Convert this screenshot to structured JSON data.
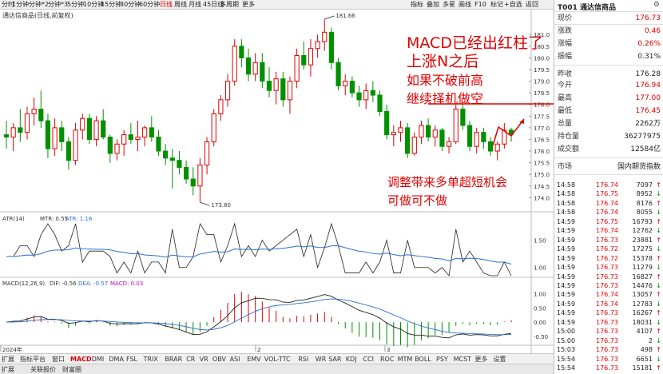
{
  "toolbar": {
    "timeframes": [
      "分时",
      "1分钟",
      "分钟*2",
      "分钟*3",
      "5分钟",
      "10分钟",
      "15分钟",
      "30分钟",
      "60分钟",
      "日线",
      "周线",
      "月线",
      "45日线",
      "多周期",
      "更多"
    ],
    "active_index": 9,
    "right_buttons": [
      "指标",
      "叠加",
      "多星",
      "画线",
      "F10",
      "标记",
      "+自选",
      "返回"
    ]
  },
  "chart": {
    "title": "通达信商品(日线,前复权)",
    "price_axis": [
      "181.0",
      "180.5",
      "180.0",
      "179.5",
      "179.0",
      "178.5",
      "178.0",
      "177.5",
      "177.0",
      "176.5",
      "176.0",
      "175.5",
      "175.0",
      "174.5",
      "174.0"
    ],
    "high_label": "181.66",
    "low_label": "173.80",
    "annotations": [
      "MACD已经出红柱了",
      "上涨N之后",
      "如果不破前高",
      "继续择机做空",
      "调整带来多单超短机会",
      "可做可不做"
    ],
    "atr": {
      "header": "ATR(14)",
      "mtr_label": "MTR: 0.55",
      "atr_label": "ATR: 1.16",
      "axis": [
        "1.50",
        "1.00"
      ]
    },
    "macd": {
      "header": "MACD(12,26,9)",
      "dif_label": "DIF: -0.56",
      "dea_label": "DEA: -0.57",
      "macd_label": "MACD: 0.03",
      "axis": [
        "1.00",
        "0.50",
        "0.00",
        "-0.50"
      ]
    },
    "x_axis": [
      "2024年",
      "2",
      "3"
    ],
    "candles": [
      [
        176.7,
        177.3,
        176.1,
        176.6
      ],
      [
        176.6,
        177.2,
        176.0,
        177.0
      ],
      [
        177.0,
        177.8,
        176.4,
        176.8
      ],
      [
        176.8,
        177.9,
        176.5,
        177.6
      ],
      [
        177.6,
        178.3,
        177.1,
        177.8
      ],
      [
        177.8,
        178.6,
        177.0,
        177.3
      ],
      [
        177.3,
        177.6,
        175.7,
        176.1
      ],
      [
        176.1,
        177.4,
        175.8,
        177.0
      ],
      [
        177.0,
        177.3,
        176.0,
        176.4
      ],
      [
        176.4,
        176.6,
        175.2,
        175.6
      ],
      [
        175.6,
        177.2,
        175.4,
        176.9
      ],
      [
        176.9,
        177.6,
        176.5,
        177.4
      ],
      [
        177.4,
        177.6,
        176.3,
        176.5
      ],
      [
        176.5,
        177.5,
        176.2,
        177.3
      ],
      [
        177.3,
        177.8,
        176.5,
        176.6
      ],
      [
        176.6,
        176.7,
        175.5,
        175.9
      ],
      [
        175.9,
        176.5,
        175.6,
        176.3
      ],
      [
        176.3,
        176.9,
        175.8,
        176.7
      ],
      [
        176.7,
        177.2,
        176.3,
        176.5
      ],
      [
        176.5,
        177.3,
        176.0,
        176.6
      ],
      [
        176.6,
        177.1,
        176.2,
        177.0
      ],
      [
        177.0,
        177.5,
        176.4,
        176.6
      ],
      [
        176.6,
        176.9,
        175.8,
        176.0
      ],
      [
        176.0,
        176.3,
        175.4,
        175.7
      ],
      [
        175.7,
        176.1,
        174.4,
        175.6
      ],
      [
        175.6,
        176.0,
        175.0,
        175.3
      ],
      [
        175.3,
        175.6,
        174.6,
        174.8
      ],
      [
        174.8,
        175.3,
        174.1,
        174.5
      ],
      [
        174.5,
        175.7,
        173.8,
        175.4
      ],
      [
        175.4,
        176.6,
        175.0,
        176.4
      ],
      [
        176.4,
        177.8,
        176.2,
        177.6
      ],
      [
        177.6,
        178.4,
        177.3,
        178.2
      ],
      [
        178.2,
        179.3,
        177.9,
        179.0
      ],
      [
        179.0,
        180.8,
        178.8,
        180.5
      ],
      [
        180.5,
        180.8,
        179.6,
        180.0
      ],
      [
        180.0,
        180.4,
        179.0,
        179.3
      ],
      [
        179.3,
        180.2,
        179.0,
        179.8
      ],
      [
        179.8,
        180.2,
        178.7,
        179.0
      ],
      [
        179.0,
        179.6,
        178.3,
        178.6
      ],
      [
        178.6,
        179.4,
        178.0,
        179.1
      ],
      [
        179.1,
        179.4,
        177.9,
        178.2
      ],
      [
        178.2,
        179.2,
        177.6,
        179.0
      ],
      [
        179.0,
        180.4,
        178.7,
        180.1
      ],
      [
        180.1,
        180.7,
        179.5,
        179.7
      ],
      [
        179.7,
        180.8,
        179.2,
        180.4
      ],
      [
        180.4,
        181.0,
        180.0,
        180.7
      ],
      [
        180.7,
        181.66,
        180.3,
        181.1
      ],
      [
        181.1,
        181.3,
        179.5,
        179.8
      ],
      [
        179.8,
        180.0,
        178.6,
        178.8
      ],
      [
        178.8,
        179.3,
        178.4,
        179.0
      ],
      [
        179.0,
        179.2,
        178.3,
        178.5
      ],
      [
        178.5,
        178.8,
        177.9,
        178.2
      ],
      [
        178.2,
        178.9,
        177.8,
        178.6
      ],
      [
        178.6,
        179.0,
        178.1,
        178.4
      ],
      [
        178.4,
        178.6,
        177.5,
        177.7
      ],
      [
        177.7,
        178.0,
        176.5,
        176.7
      ],
      [
        176.7,
        177.1,
        176.2,
        176.8
      ],
      [
        176.8,
        177.3,
        176.4,
        177.0
      ],
      [
        177.0,
        177.2,
        175.7,
        175.9
      ],
      [
        175.9,
        176.8,
        175.8,
        176.6
      ],
      [
        176.6,
        177.3,
        176.3,
        177.1
      ],
      [
        177.1,
        177.4,
        176.4,
        176.6
      ],
      [
        176.6,
        177.1,
        176.2,
        176.9
      ],
      [
        176.9,
        177.0,
        176.0,
        176.2
      ],
      [
        176.2,
        176.6,
        175.9,
        176.4
      ],
      [
        176.4,
        178.0,
        176.3,
        177.8
      ],
      [
        177.8,
        178.0,
        176.9,
        177.1
      ],
      [
        177.1,
        177.3,
        176.0,
        176.2
      ],
      [
        176.2,
        177.0,
        175.9,
        176.8
      ],
      [
        176.8,
        177.0,
        176.1,
        176.4
      ],
      [
        176.4,
        176.6,
        175.8,
        176.0
      ],
      [
        176.0,
        176.4,
        175.6,
        176.3
      ],
      [
        176.3,
        177.2,
        176.1,
        176.9
      ],
      [
        176.9,
        177.0,
        176.4,
        176.73
      ]
    ]
  },
  "tabs": [
    "扩展",
    "指标平台",
    "窗口",
    "MACD",
    "DMI",
    "DMA",
    "FSL",
    "TRIX",
    "BRAR",
    "CR",
    "VR",
    "OBV",
    "ASI",
    "EMV",
    "VOL-TTC",
    "RSI",
    "WR",
    "SAR",
    "KDJ",
    "CCI",
    "ROC",
    "MTM",
    "BOLL",
    "PSY",
    "MCST",
    "更多",
    "设置"
  ],
  "active_tab_index": 3,
  "tabs2": [
    "扩展",
    "关联报价",
    "财富圈"
  ],
  "quote": {
    "title": "T001 通达信商品",
    "rows": [
      {
        "label": "现价",
        "value": "176.73",
        "color": "red"
      },
      {
        "label": "涨跌",
        "value": "0.46",
        "color": "red"
      },
      {
        "label": "涨幅",
        "value": "0.26%",
        "color": "red"
      },
      {
        "label": "振幅",
        "value": "0.31%",
        "color": "blk"
      },
      {
        "label": "昨收",
        "value": "176.28",
        "color": "blk"
      },
      {
        "label": "今开",
        "value": "176.94",
        "color": "red"
      },
      {
        "label": "最高",
        "value": "177.00",
        "color": "red"
      },
      {
        "label": "最低",
        "value": "176.45",
        "color": "red"
      },
      {
        "label": "总量",
        "value": "2262万",
        "color": "blk"
      },
      {
        "label": "持仓量",
        "value": "36277975",
        "color": "blk"
      },
      {
        "label": "成交额",
        "value": "12584亿",
        "color": "blk"
      }
    ],
    "market_label": "市场",
    "market_value": "国内期货指数"
  },
  "ticks": [
    [
      "14:58",
      "176.74",
      "7097"
    ],
    [
      "14:58",
      "176.75",
      "8952"
    ],
    [
      "14:58",
      "176.74",
      "8176"
    ],
    [
      "14:58",
      "176.74",
      "8055"
    ],
    [
      "14:59",
      "176.75",
      "16793"
    ],
    [
      "14:59",
      "176.74",
      "12762"
    ],
    [
      "14:59",
      "176.73",
      "23881"
    ],
    [
      "14:59",
      "176.72",
      "17275"
    ],
    [
      "14:59",
      "176.72",
      "15378"
    ],
    [
      "14:59",
      "176.73",
      "11279"
    ],
    [
      "14:59",
      "176.73",
      "16827"
    ],
    [
      "14:59",
      "176.73",
      "14476"
    ],
    [
      "14:59",
      "176.74",
      "13057"
    ],
    [
      "14:59",
      "176.74",
      "12783"
    ],
    [
      "14:59",
      "176.73",
      "16267"
    ],
    [
      "14:59",
      "176.73",
      "18031"
    ],
    [
      "15:00",
      "176.73",
      "4107"
    ],
    [
      "15:00",
      "176.73",
      "2"
    ],
    [
      "15:03",
      "176.73",
      "498"
    ],
    [
      "15:54",
      "176.73",
      "6651"
    ],
    [
      "15:54",
      "176.73",
      "15181"
    ]
  ],
  "colors": {
    "up": "#e00000",
    "down": "#009000",
    "annotation": "#e00000",
    "atr_line": "#2a6fd0",
    "mtr_line": "#222222"
  }
}
